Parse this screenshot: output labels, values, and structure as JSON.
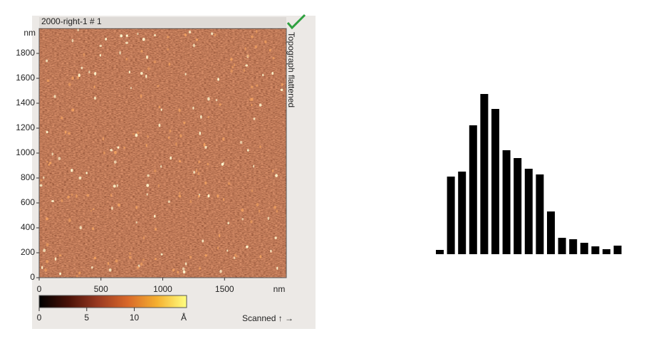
{
  "afm_image": {
    "title": "2000-right-1 # 1",
    "side_label": "Topograph flattened",
    "y_unit": "nm",
    "x_unit": "nm",
    "xlim": [
      0,
      2000
    ],
    "ylim": [
      0,
      2000
    ],
    "xticks": [
      0,
      500,
      1000,
      1500
    ],
    "yticks": [
      0,
      200,
      400,
      600,
      800,
      1000,
      1200,
      1400,
      1600,
      1800
    ],
    "colorbar": {
      "lim": [
        0,
        15.5
      ],
      "ticks": [
        0,
        5,
        10
      ],
      "unit": "Å",
      "colors": [
        "#000000",
        "#4a1208",
        "#9a3a22",
        "#d8682a",
        "#f5b030",
        "#ffff80"
      ]
    },
    "scan_label": "Scanned ↑ →"
  },
  "chart_data": {
    "type": "bar",
    "values": [
      6,
      109,
      116,
      181,
      225,
      204,
      146,
      135,
      120,
      112,
      60,
      23,
      21,
      16,
      11,
      7,
      12
    ],
    "color": "#000000"
  }
}
